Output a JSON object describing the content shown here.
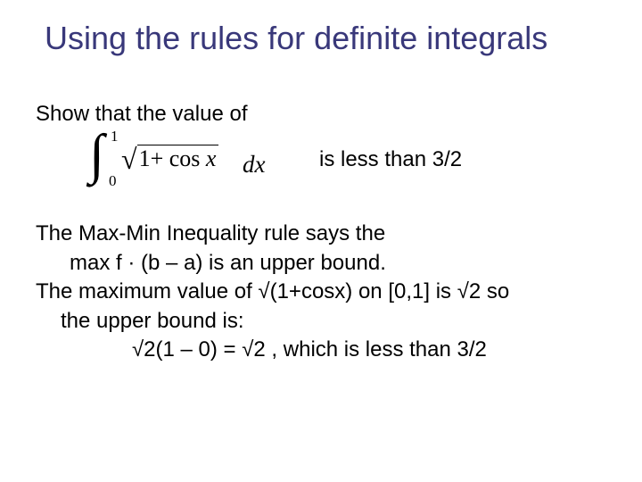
{
  "colors": {
    "title": "#39387a",
    "body": "#000000",
    "background": "#ffffff"
  },
  "typography": {
    "title_fontsize": 36,
    "body_fontsize": 24,
    "title_family": "Arial",
    "body_family": "Arial",
    "math_family": "Times New Roman"
  },
  "title": "Using the rules for definite integrals",
  "prompt": "Show that the value of",
  "integral": {
    "lower": "0",
    "upper": "1",
    "one_plus": "1",
    "plus": "+",
    "cos": "cos",
    "var": "x",
    "dx": "dx"
  },
  "tail": "is less than 3/2",
  "explain": {
    "l1": "The Max-Min Inequality rule says the",
    "l2": "max f · (b – a) is an upper bound.",
    "l3a": "The maximum value of √(1+cosx) on [0,1] is √2 so",
    "l3b": "the upper bound is:",
    "l4": "√2(1 – 0) = √2 ,  which is less than 3/2"
  }
}
